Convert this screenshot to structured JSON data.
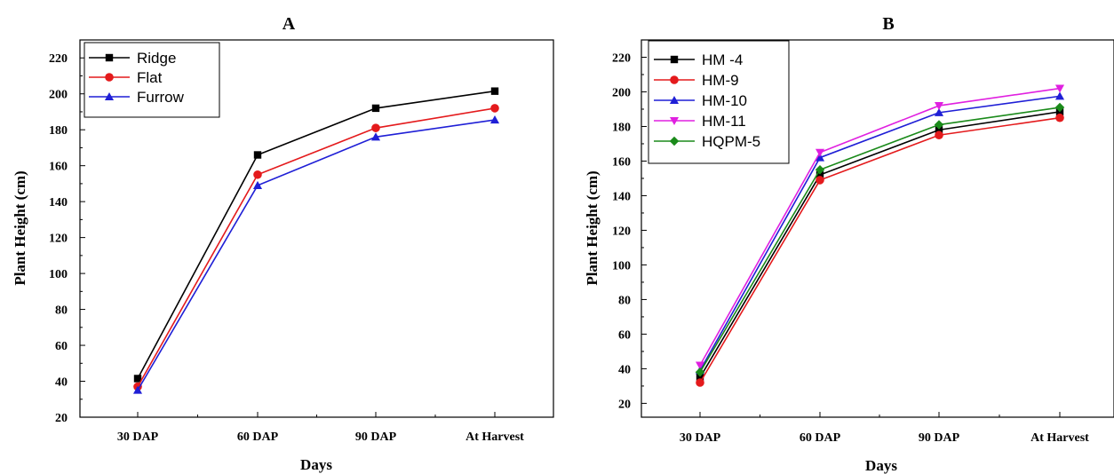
{
  "chart_data": [
    {
      "type": "line",
      "title": "A",
      "xlabel": "Days",
      "ylabel": "Plant Height (cm)",
      "categories": [
        "30 DAP",
        "60 DAP",
        "90 DAP",
        "At Harvest"
      ],
      "ylim": [
        20,
        230
      ],
      "yticks": [
        20,
        40,
        60,
        80,
        100,
        120,
        140,
        160,
        180,
        200,
        220
      ],
      "legend_position": "top-left",
      "grid": false,
      "series": [
        {
          "name": "Ridge",
          "color": "#000000",
          "marker": "square",
          "values": [
            41.5,
            166,
            192,
            201.5
          ]
        },
        {
          "name": "Flat",
          "color": "#e41a1c",
          "marker": "circle",
          "values": [
            37,
            155,
            181,
            192
          ]
        },
        {
          "name": "Furrow",
          "color": "#1f1fd6",
          "marker": "triangle-up",
          "values": [
            35,
            149,
            176,
            185.5
          ]
        }
      ]
    },
    {
      "type": "line",
      "title": "B",
      "xlabel": "Days",
      "ylabel": "Plant Height (cm)",
      "categories": [
        "30 DAP",
        "60 DAP",
        "90 DAP",
        "At Harvest"
      ],
      "ylim": [
        12,
        230
      ],
      "yticks": [
        20,
        40,
        60,
        80,
        100,
        120,
        140,
        160,
        180,
        200,
        220
      ],
      "legend_position": "top-left",
      "grid": false,
      "series": [
        {
          "name": "HM -4",
          "color": "#000000",
          "marker": "square",
          "values": [
            35,
            152,
            178,
            188.5
          ]
        },
        {
          "name": "HM-9",
          "color": "#e41a1c",
          "marker": "circle",
          "values": [
            32,
            149,
            175,
            185
          ]
        },
        {
          "name": "HM-10",
          "color": "#1f1fd6",
          "marker": "triangle-up",
          "values": [
            39,
            162,
            188,
            197.5
          ]
        },
        {
          "name": "HM-11",
          "color": "#e020e0",
          "marker": "triangle-down",
          "values": [
            42,
            165,
            192,
            202
          ]
        },
        {
          "name": "HQPM-5",
          "color": "#1a8a1a",
          "marker": "diamond",
          "values": [
            38,
            155,
            181,
            191
          ]
        }
      ]
    }
  ]
}
